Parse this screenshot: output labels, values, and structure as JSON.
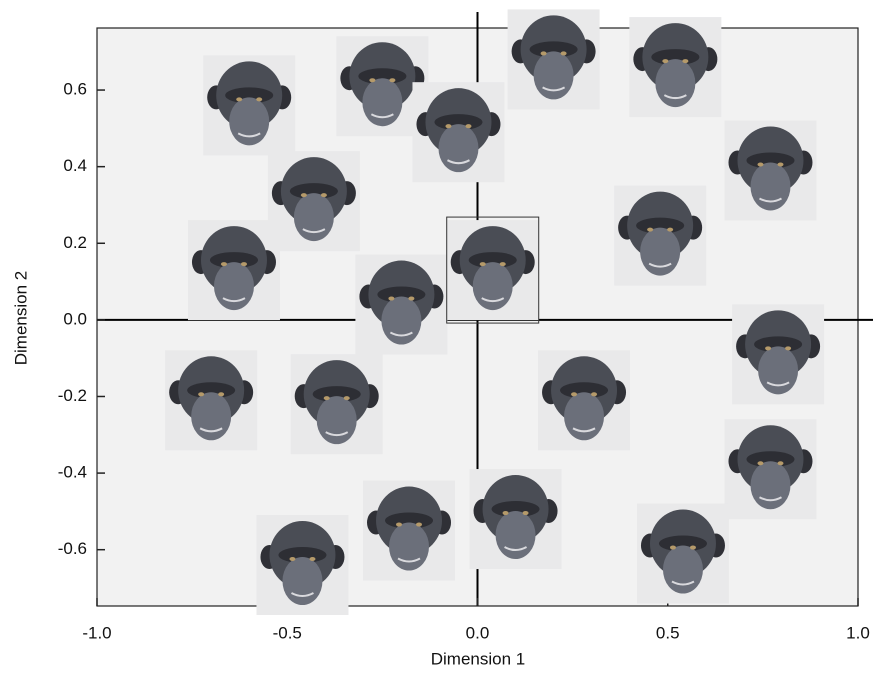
{
  "chart_data": {
    "type": "scatter",
    "x_label": "Dimension 1",
    "y_label": "Dimension 2",
    "x": [
      -0.6,
      -0.25,
      -0.05,
      0.2,
      0.52,
      -0.43,
      -0.64,
      -0.2,
      0.04,
      0.48,
      0.77,
      -0.7,
      -0.37,
      0.28,
      0.79,
      0.77,
      -0.18,
      0.1,
      -0.46,
      0.54
    ],
    "y": [
      0.56,
      0.61,
      0.49,
      0.68,
      0.66,
      0.31,
      0.13,
      0.04,
      0.13,
      0.22,
      0.39,
      -0.21,
      -0.22,
      -0.21,
      -0.09,
      -0.39,
      -0.55,
      -0.52,
      -0.64,
      -0.61
    ],
    "highlighted": 8,
    "xlim": [
      -1.0,
      1.0
    ],
    "ylim": [
      -0.747,
      0.762
    ],
    "xticks": [
      {
        "value": -1.0,
        "label": "-1.0"
      },
      -0.5,
      {
        "value": 0,
        "label": "0.0"
      },
      0.5,
      {
        "value": 1.0,
        "label": "1.0"
      }
    ],
    "yticks": [
      -0.6,
      -0.4,
      -0.2,
      {
        "value": 0,
        "label": "0.0"
      },
      0.2,
      0.4,
      0.6
    ],
    "color": "#4a4d55",
    "background": "#f2f2f2"
  }
}
